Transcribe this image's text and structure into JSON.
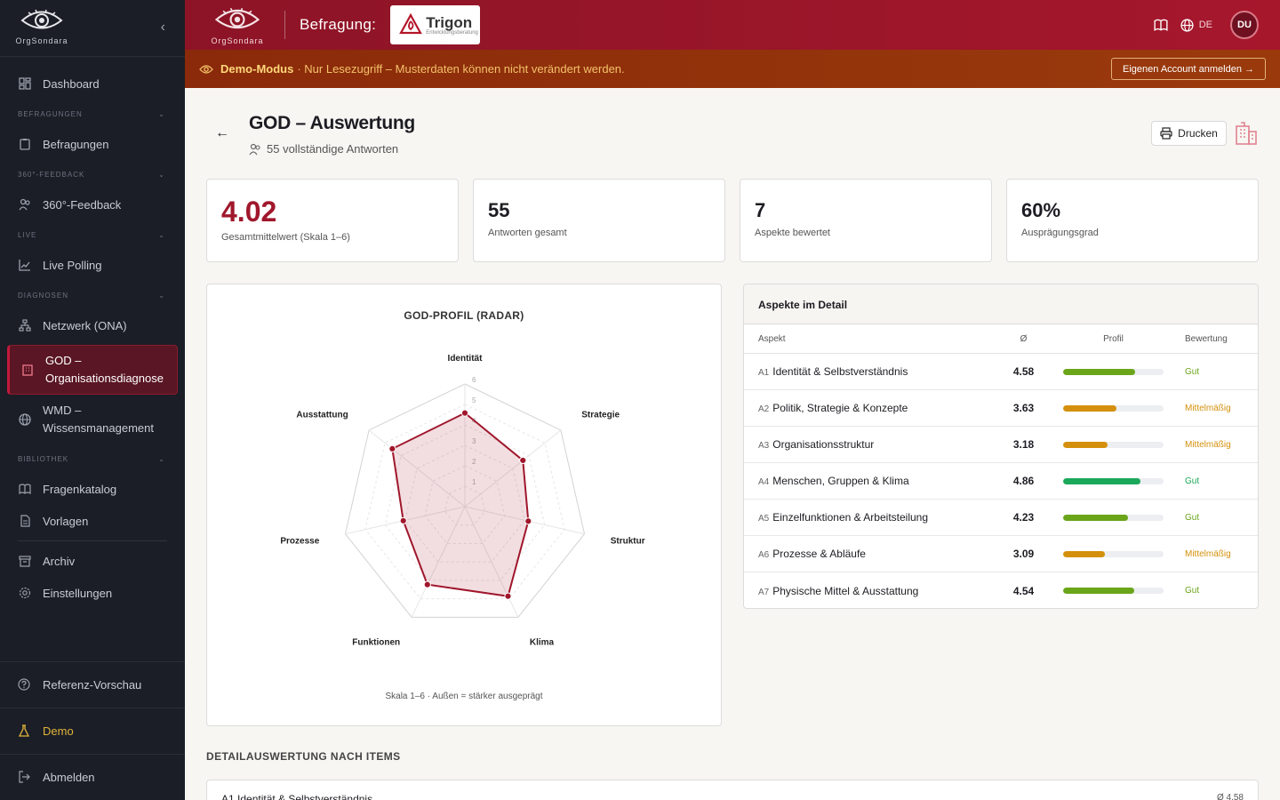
{
  "brand": {
    "name": "OrgSondara"
  },
  "sidebar": {
    "items": {
      "dashboard": "Dashboard",
      "befragungen": "Befragungen",
      "feedback360": "360°-Feedback",
      "live_polling": "Live Polling",
      "netzwerk": "Netzwerk (ONA)",
      "god_line1": "GOD –",
      "god_line2": "Organisationsdiagnose",
      "wmd_line1": "WMD –",
      "wmd_line2": "Wissensmanagement",
      "fragenkatalog": "Fragenkatalog",
      "vorlagen": "Vorlagen",
      "archiv": "Archiv",
      "einstellungen": "Einstellungen"
    },
    "sections": {
      "befragungen": "BEFRAGUNGEN",
      "feedback360": "360°-FEEDBACK",
      "live": "LIVE",
      "diagnosen": "DIAGNOSEN",
      "bibliothek": "BIBLIOTHEK"
    },
    "bottom": {
      "referenz": "Referenz-Vorschau",
      "demo": "Demo",
      "abmelden": "Abmelden"
    }
  },
  "topbar": {
    "label": "Befragung:",
    "partner_name": "Trigon",
    "partner_sub": "Entwicklungsberatung",
    "language": "DE",
    "avatar": "DU"
  },
  "banner": {
    "mode": "Demo-Modus",
    "text": "· Nur Lesezugriff – Musterdaten können nicht verändert werden.",
    "button": "Eigenen Account anmelden →"
  },
  "page": {
    "title": "GOD – Auswertung",
    "subtitle": "55 vollständige Antworten",
    "print": "Drucken"
  },
  "stats": [
    {
      "value": "4.02",
      "label": "Gesamtmittelwert (Skala 1–6)"
    },
    {
      "value": "55",
      "label": "Antworten gesamt"
    },
    {
      "value": "7",
      "label": "Aspekte bewertet"
    },
    {
      "value": "60%",
      "label": "Ausprägungsgrad"
    }
  ],
  "radar": {
    "title": "GOD-PROFIL (RADAR)",
    "note": "Skala 1–6 · Außen = stärker ausgeprägt",
    "accent": "#a0172c"
  },
  "chart_data": {
    "type": "radar",
    "title": "GOD-PROFIL (RADAR)",
    "categories": [
      "Identität",
      "Strategie",
      "Struktur",
      "Klima",
      "Funktionen",
      "Prozesse",
      "Ausstattung"
    ],
    "values": [
      4.58,
      3.63,
      3.18,
      4.86,
      4.23,
      3.09,
      4.54
    ],
    "rmin": 1,
    "rmax": 6,
    "ticks": [
      1,
      2,
      3,
      4,
      5,
      6
    ]
  },
  "detail": {
    "title": "Aspekte im Detail",
    "columns": {
      "aspect": "Aspekt",
      "avg": "Ø",
      "profile": "Profil",
      "rating": "Bewertung"
    },
    "rows": [
      {
        "code": "A1",
        "name": "Identität & Selbstverständnis",
        "avg": "4.58",
        "fill": 0.72,
        "rating": "Gut",
        "color": "#6aa51a"
      },
      {
        "code": "A2",
        "name": "Politik, Strategie & Konzepte",
        "avg": "3.63",
        "fill": 0.53,
        "rating": "Mittelmäßig",
        "color": "#d4900c"
      },
      {
        "code": "A3",
        "name": "Organisationsstruktur",
        "avg": "3.18",
        "fill": 0.44,
        "rating": "Mittelmäßig",
        "color": "#d4900c"
      },
      {
        "code": "A4",
        "name": "Menschen, Gruppen & Klima",
        "avg": "4.86",
        "fill": 0.77,
        "rating": "Gut",
        "color": "#1aa85a"
      },
      {
        "code": "A5",
        "name": "Einzelfunktionen & Arbeitsteilung",
        "avg": "4.23",
        "fill": 0.65,
        "rating": "Gut",
        "color": "#6aa51a"
      },
      {
        "code": "A6",
        "name": "Prozesse & Abläufe",
        "avg": "3.09",
        "fill": 0.42,
        "rating": "Mittelmäßig",
        "color": "#d4900c"
      },
      {
        "code": "A7",
        "name": "Physische Mittel & Ausstattung",
        "avg": "4.54",
        "fill": 0.71,
        "rating": "Gut",
        "color": "#6aa51a"
      }
    ]
  },
  "items_section": {
    "title": "DETAILAUSWERTUNG NACH ITEMS",
    "first_item": "A1  Identität & Selbstverständnis",
    "first_avg": "Ø 4.58"
  }
}
